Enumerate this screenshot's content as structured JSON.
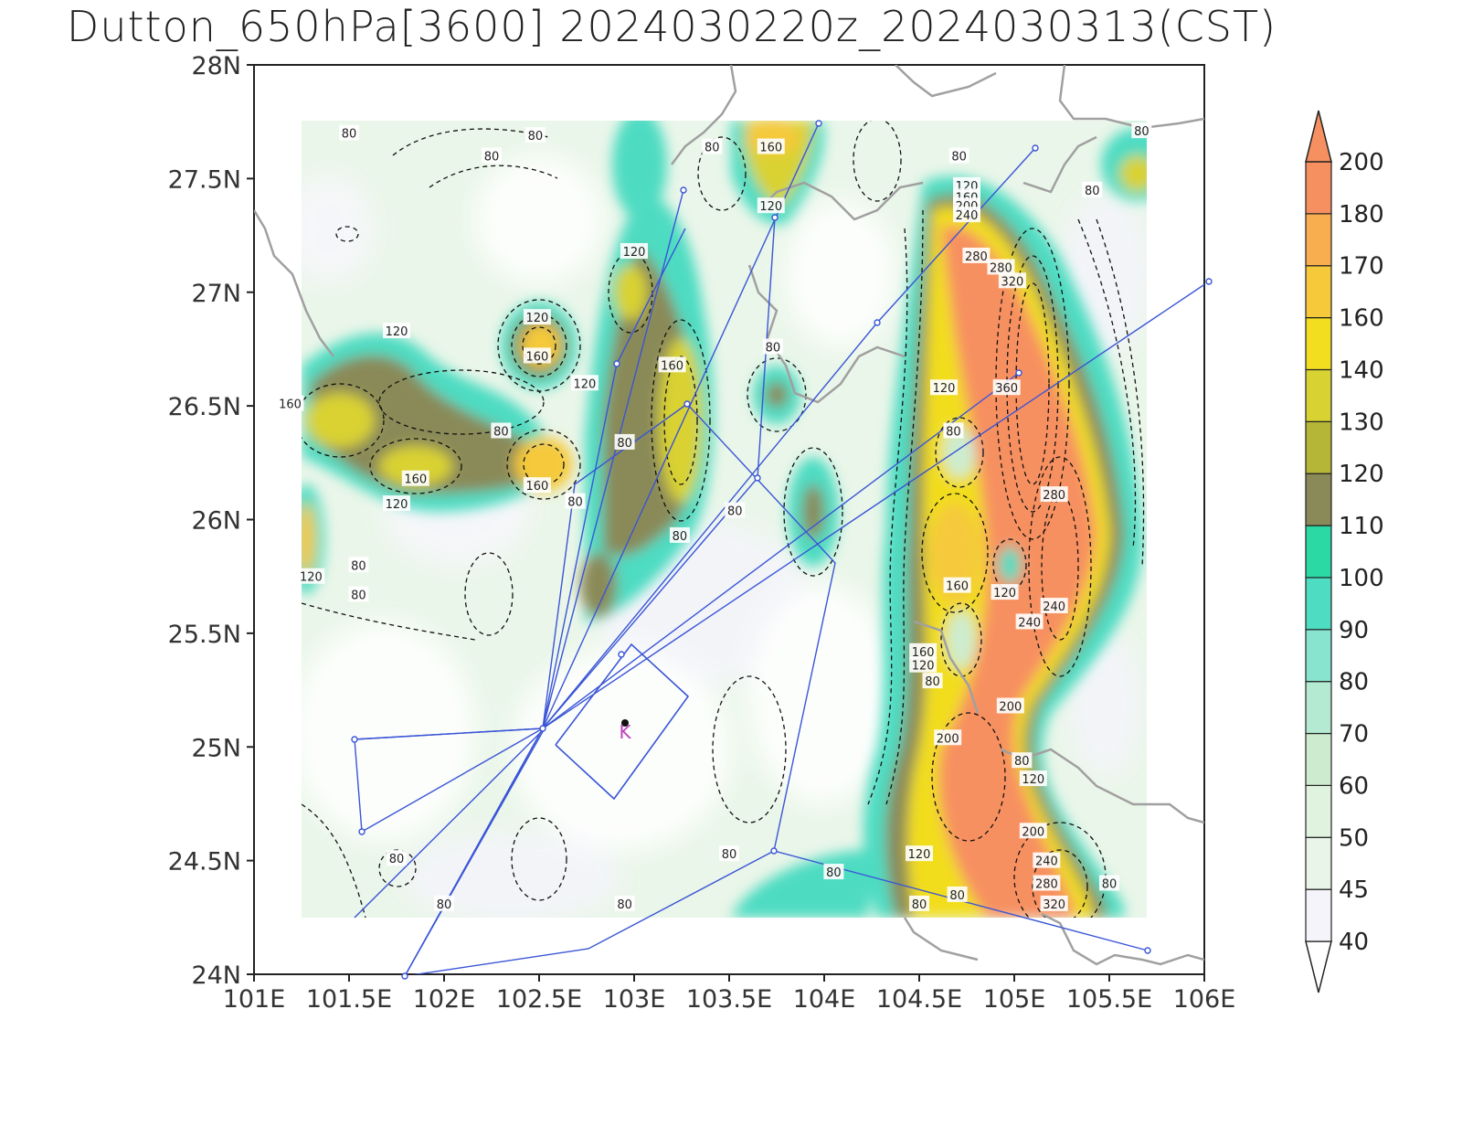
{
  "title": "Dutton_650hPa[3600]  2024030220z_2024030313(CST)",
  "map": {
    "lon_range": [
      101,
      106
    ],
    "lat_range": [
      24,
      28
    ],
    "lon_ticks": [
      "101E",
      "101.5E",
      "102E",
      "102.5E",
      "103E",
      "103.5E",
      "104E",
      "104.5E",
      "105E",
      "105.5E",
      "106E"
    ],
    "lat_ticks": [
      "24N",
      "24.5N",
      "25N",
      "25.5N",
      "26N",
      "26.5N",
      "27N",
      "27.5N",
      "28N"
    ],
    "station_marker": "K",
    "colors": {
      "route_lines": "#3a55d6",
      "borders": "#a0a0a0",
      "station_label": "#c040c0"
    }
  },
  "colorbar": {
    "levels": [
      "40",
      "45",
      "50",
      "60",
      "70",
      "80",
      "90",
      "100",
      "110",
      "120",
      "130",
      "140",
      "160",
      "170",
      "180",
      "200"
    ],
    "colors": [
      "#ffffff",
      "#f4f4fa",
      "#e8f5e8",
      "#dff3df",
      "#cdeccf",
      "#b4e9d2",
      "#88e3cf",
      "#4edcc2",
      "#2ad9a4",
      "#8a8a58",
      "#b5b538",
      "#d9d233",
      "#f2dd1f",
      "#f5c93a",
      "#f8ad4f",
      "#f79061"
    ]
  },
  "contour_labels": [
    {
      "text": "80",
      "lon": 101.5,
      "lat": 27.7
    },
    {
      "text": "80",
      "lon": 102.48,
      "lat": 27.69
    },
    {
      "text": "80",
      "lon": 102.25,
      "lat": 27.6
    },
    {
      "text": "80",
      "lon": 103.41,
      "lat": 27.64
    },
    {
      "text": "160",
      "lon": 103.72,
      "lat": 27.64
    },
    {
      "text": "120",
      "lon": 103.72,
      "lat": 27.38
    },
    {
      "text": "80",
      "lon": 104.71,
      "lat": 27.6
    },
    {
      "text": "120",
      "lon": 104.75,
      "lat": 27.47
    },
    {
      "text": "160",
      "lon": 104.75,
      "lat": 27.42
    },
    {
      "text": "200",
      "lon": 104.75,
      "lat": 27.38
    },
    {
      "text": "240",
      "lon": 104.75,
      "lat": 27.34
    },
    {
      "text": "80",
      "lon": 105.41,
      "lat": 27.45
    },
    {
      "text": "80",
      "lon": 105.67,
      "lat": 27.71
    },
    {
      "text": "120",
      "lon": 103.0,
      "lat": 27.18
    },
    {
      "text": "280",
      "lon": 104.8,
      "lat": 27.16
    },
    {
      "text": "280",
      "lon": 104.93,
      "lat": 27.11
    },
    {
      "text": "320",
      "lon": 104.99,
      "lat": 27.05
    },
    {
      "text": "120",
      "lon": 101.75,
      "lat": 26.83
    },
    {
      "text": "120",
      "lon": 102.49,
      "lat": 26.89
    },
    {
      "text": "160",
      "lon": 102.49,
      "lat": 26.72
    },
    {
      "text": "160",
      "lon": 101.19,
      "lat": 26.51
    },
    {
      "text": "120",
      "lon": 102.74,
      "lat": 26.6
    },
    {
      "text": "160",
      "lon": 103.2,
      "lat": 26.68
    },
    {
      "text": "80",
      "lon": 103.73,
      "lat": 26.76
    },
    {
      "text": "120",
      "lon": 104.63,
      "lat": 26.58
    },
    {
      "text": "360",
      "lon": 104.96,
      "lat": 26.58
    },
    {
      "text": "80",
      "lon": 102.3,
      "lat": 26.39
    },
    {
      "text": "80",
      "lon": 102.95,
      "lat": 26.34
    },
    {
      "text": "80",
      "lon": 104.68,
      "lat": 26.39
    },
    {
      "text": "160",
      "lon": 101.85,
      "lat": 26.18
    },
    {
      "text": "160",
      "lon": 102.49,
      "lat": 26.15
    },
    {
      "text": "120",
      "lon": 101.75,
      "lat": 26.07
    },
    {
      "text": "80",
      "lon": 102.69,
      "lat": 26.08
    },
    {
      "text": "80",
      "lon": 103.53,
      "lat": 26.04
    },
    {
      "text": "280",
      "lon": 105.21,
      "lat": 26.11
    },
    {
      "text": "80",
      "lon": 103.24,
      "lat": 25.93
    },
    {
      "text": "120",
      "lon": 101.3,
      "lat": 25.75
    },
    {
      "text": "80",
      "lon": 101.55,
      "lat": 25.8
    },
    {
      "text": "80",
      "lon": 101.55,
      "lat": 25.67
    },
    {
      "text": "160",
      "lon": 104.7,
      "lat": 25.71
    },
    {
      "text": "120",
      "lon": 104.95,
      "lat": 25.68
    },
    {
      "text": "240",
      "lon": 105.21,
      "lat": 25.62
    },
    {
      "text": "240",
      "lon": 105.08,
      "lat": 25.55
    },
    {
      "text": "160",
      "lon": 104.52,
      "lat": 25.42
    },
    {
      "text": "120",
      "lon": 104.52,
      "lat": 25.36
    },
    {
      "text": "80",
      "lon": 104.57,
      "lat": 25.29
    },
    {
      "text": "200",
      "lon": 104.98,
      "lat": 25.18
    },
    {
      "text": "200",
      "lon": 104.65,
      "lat": 25.04
    },
    {
      "text": "80",
      "lon": 105.04,
      "lat": 24.94
    },
    {
      "text": "120",
      "lon": 105.1,
      "lat": 24.86
    },
    {
      "text": "200",
      "lon": 105.1,
      "lat": 24.63
    },
    {
      "text": "240",
      "lon": 105.17,
      "lat": 24.5
    },
    {
      "text": "280",
      "lon": 105.17,
      "lat": 24.4
    },
    {
      "text": "320",
      "lon": 105.21,
      "lat": 24.31
    },
    {
      "text": "80",
      "lon": 105.5,
      "lat": 24.4
    },
    {
      "text": "80",
      "lon": 101.75,
      "lat": 24.51
    },
    {
      "text": "80",
      "lon": 103.5,
      "lat": 24.53
    },
    {
      "text": "120",
      "lon": 104.5,
      "lat": 24.53
    },
    {
      "text": "80",
      "lon": 104.05,
      "lat": 24.45
    },
    {
      "text": "80",
      "lon": 102.0,
      "lat": 24.31
    },
    {
      "text": "80",
      "lon": 102.95,
      "lat": 24.31
    },
    {
      "text": "80",
      "lon": 104.5,
      "lat": 24.31
    },
    {
      "text": "80",
      "lon": 104.7,
      "lat": 24.35
    }
  ]
}
